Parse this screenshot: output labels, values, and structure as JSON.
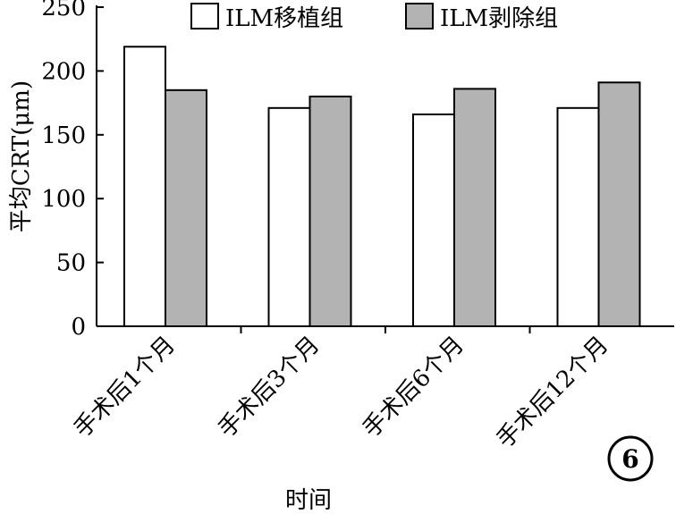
{
  "chart_data": {
    "type": "bar",
    "categories": [
      "手术后1个月",
      "手术后3个月",
      "手术后6个月",
      "手术后12个月"
    ],
    "series": [
      {
        "name": "ILM移植组",
        "values": [
          219,
          171,
          166,
          171
        ],
        "color": "#ffffff"
      },
      {
        "name": "ILM剥除组",
        "values": [
          185,
          180,
          186,
          191
        ],
        "color": "#b3b3b3"
      }
    ],
    "xlabel": "时间",
    "ylabel": "平均CRT(μm)",
    "ylim": [
      0,
      250
    ],
    "yticks": [
      0,
      50,
      100,
      150,
      200,
      250
    ],
    "grid": false,
    "legend": "top"
  },
  "panel_label": "6"
}
